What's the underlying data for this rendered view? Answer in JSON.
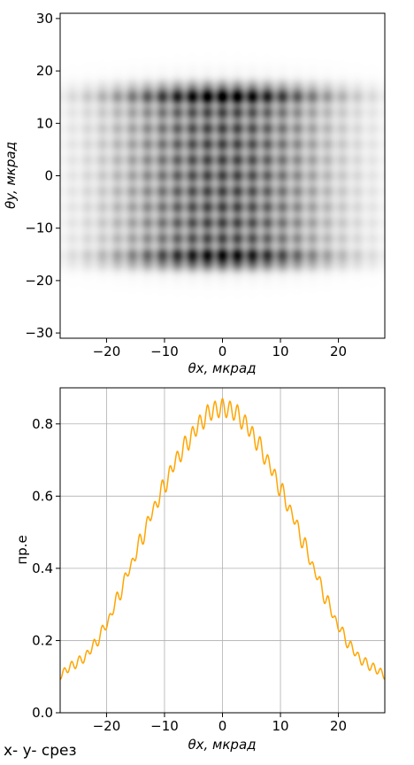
{
  "caption": "x- y- срез",
  "chart_data": [
    {
      "type": "heatmap",
      "colormap": "gray_r",
      "title": "",
      "xlabel": "θx, мкрад",
      "ylabel": "θy, мкрад",
      "xlim": [
        -28,
        28
      ],
      "ylim": [
        -31,
        31
      ],
      "xticks": [
        -20,
        -10,
        0,
        10,
        20
      ],
      "xtick_labels": [
        "−20",
        "−10",
        "0",
        "10",
        "20"
      ],
      "yticks": [
        -30,
        -20,
        -10,
        0,
        10,
        20,
        30
      ],
      "ytick_labels": [
        "−30",
        "−20",
        "−10",
        "0",
        "10",
        "20",
        "30"
      ],
      "grid": false,
      "field": {
        "x_envelope_sigma": 13,
        "y_half_extent": 16.5,
        "edge_peak_y": [
          -16,
          15.5
        ],
        "fringe_period_x": 2.6,
        "fringe_period_y": 3.0,
        "peak_intensity": 1.0
      }
    },
    {
      "type": "line",
      "title": "",
      "xlabel": "θx, мкрад",
      "ylabel": "пр.е",
      "xlim": [
        -28,
        28
      ],
      "ylim": [
        0,
        0.9
      ],
      "xticks": [
        -20,
        -10,
        0,
        10,
        20
      ],
      "xtick_labels": [
        "−20",
        "−10",
        "0",
        "10",
        "20"
      ],
      "yticks": [
        0.0,
        0.2,
        0.4,
        0.6,
        0.8
      ],
      "ytick_labels": [
        "0.0",
        "0.2",
        "0.4",
        "0.6",
        "0.8"
      ],
      "grid": true,
      "color": "#ffa500",
      "series": [
        {
          "x": [
            -28,
            -26,
            -24,
            -22,
            -20,
            -18,
            -16,
            -14,
            -12,
            -10,
            -8,
            -6,
            -4,
            -2,
            0,
            2,
            4,
            6,
            8,
            10,
            12,
            14,
            16,
            18,
            20,
            22,
            24,
            26,
            28
          ],
          "values": [
            0.105,
            0.13,
            0.15,
            0.19,
            0.245,
            0.32,
            0.4,
            0.48,
            0.56,
            0.63,
            0.7,
            0.75,
            0.8,
            0.835,
            0.845,
            0.835,
            0.8,
            0.75,
            0.69,
            0.62,
            0.55,
            0.47,
            0.39,
            0.31,
            0.24,
            0.185,
            0.145,
            0.125,
            0.105
          ],
          "ripple_amplitude": 0.025,
          "ripple_period": 1.3
        }
      ]
    }
  ]
}
